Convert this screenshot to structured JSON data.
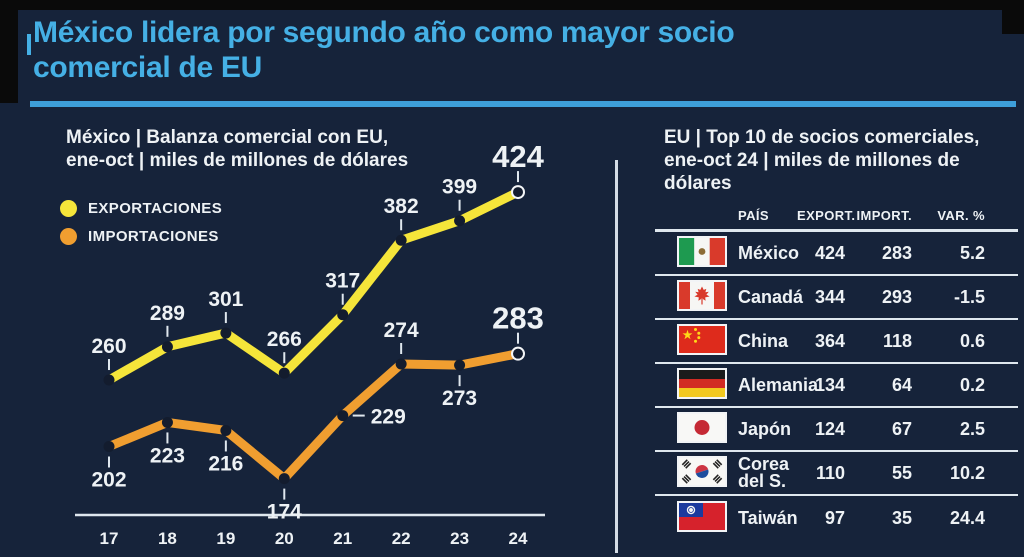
{
  "theme": {
    "bg": "#16233a",
    "frame_black": "#0a0a0a",
    "accent_cyan": "#45b0e5",
    "rule_cyan": "#3e9fd9",
    "text_white": "#eef2f5",
    "separator": "#dfe7ee",
    "leader_line": "#dfe7ee",
    "point_dark": "#131c2e",
    "exports_yellow": "#f5e53a",
    "imports_orange": "#f09e30"
  },
  "header": {
    "title_line1": "México lidera por segundo año como mayor socio",
    "title_line2": "comercial de EU"
  },
  "chart": {
    "title_line1": "México | Balanza comercial con EU,",
    "title_line2": "ene-oct | miles de millones de dólares"
  },
  "chart_data": {
    "type": "line",
    "title": "México | Balanza comercial con EU, ene-oct | miles de millones de dólares",
    "categories": [
      "17",
      "18",
      "19",
      "20",
      "21",
      "22",
      "23",
      "24"
    ],
    "series": [
      {
        "name": "EXPORTACIONES",
        "color": "#f5e53a",
        "values": [
          260,
          289,
          301,
          266,
          317,
          382,
          399,
          424
        ],
        "label_pos": [
          "above",
          "above",
          "above",
          "above",
          "above",
          "above",
          "above",
          "above"
        ]
      },
      {
        "name": "IMPORTACIONES",
        "color": "#f09e30",
        "values": [
          202,
          223,
          216,
          174,
          229,
          274,
          273,
          283
        ],
        "label_pos": [
          "below",
          "below",
          "below",
          "below",
          "right",
          "above",
          "below",
          "above"
        ]
      }
    ],
    "legend_position": "top-left",
    "grid": false,
    "ylim": [
      160,
      440
    ],
    "emphasis_last_point": true
  },
  "table": {
    "title_line1": "EU | Top 10 de socios comerciales,",
    "title_line2": "ene-oct 24 | miles de millones de dólares",
    "columns": [
      "PAÍS",
      "EXPORT.",
      "IMPORT.",
      "VAR. %"
    ],
    "rows": [
      {
        "flag_icon": "mexico-flag-icon",
        "flag": "mx",
        "country": "México",
        "export": "424",
        "import": "283",
        "var": "5.2"
      },
      {
        "flag_icon": "canada-flag-icon",
        "flag": "ca",
        "country": "Canadá",
        "export": "344",
        "import": "293",
        "var": "-1.5"
      },
      {
        "flag_icon": "china-flag-icon",
        "flag": "cn",
        "country": "China",
        "export": "364",
        "import": "118",
        "var": "0.6"
      },
      {
        "flag_icon": "germany-flag-icon",
        "flag": "de",
        "country": "Alemania",
        "export": "134",
        "import": "64",
        "var": "0.2"
      },
      {
        "flag_icon": "japan-flag-icon",
        "flag": "jp",
        "country": "Japón",
        "export": "124",
        "import": "67",
        "var": "2.5"
      },
      {
        "flag_icon": "south-korea-flag-icon",
        "flag": "kr",
        "country": "Corea del S.",
        "export": "110",
        "import": "55",
        "var": "10.2"
      },
      {
        "flag_icon": "taiwan-flag-icon",
        "flag": "tw",
        "country": "Taiwán",
        "export": "97",
        "import": "35",
        "var": "24.4"
      }
    ]
  }
}
